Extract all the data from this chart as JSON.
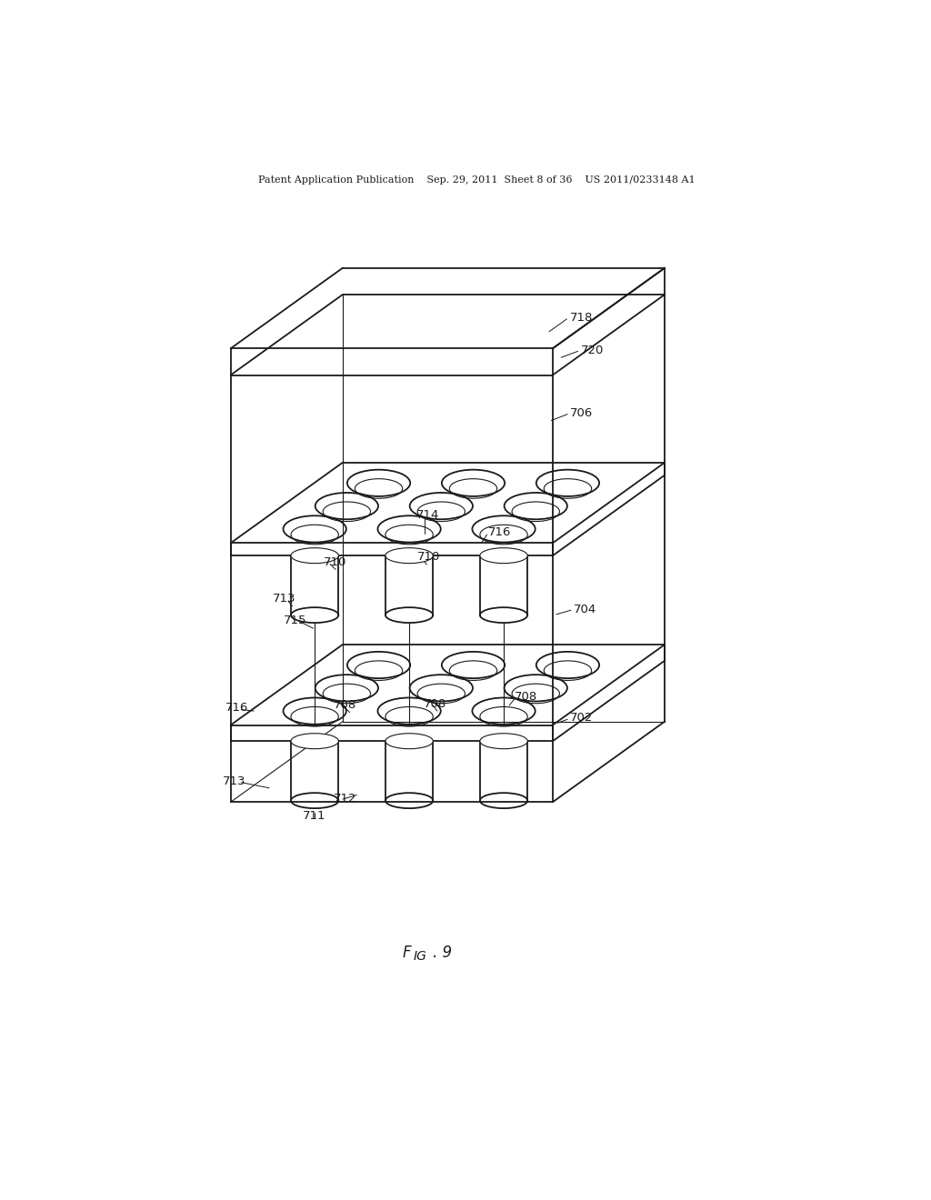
{
  "bg_color": "#ffffff",
  "line_color": "#1a1a1a",
  "header_text": "Patent Application Publication    Sep. 29, 2011  Sheet 8 of 36    US 2011/0233148 A1",
  "figure_label": "FIG. 9",
  "lw_main": 1.3,
  "lw_thin": 0.8,
  "lw_label": 0.7
}
